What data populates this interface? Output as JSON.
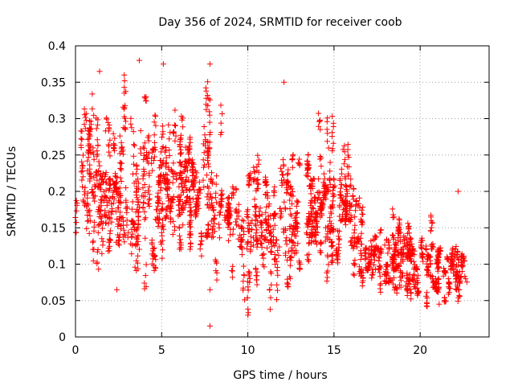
{
  "chart_data": {
    "type": "scatter",
    "title": "Day 356 of 2024, SRMTID for receiver coob",
    "xlabel": "GPS time / hours",
    "ylabel": "SRMTID / TECUs",
    "xlim": [
      0,
      24
    ],
    "ylim": [
      0,
      0.4
    ],
    "x_ticks": [
      0,
      5,
      10,
      15,
      20
    ],
    "x_tick_labels": [
      "0",
      "5",
      "10",
      "15",
      "20"
    ],
    "y_ticks": [
      0,
      0.05,
      0.1,
      0.15,
      0.2,
      0.25,
      0.3,
      0.35,
      0.4
    ],
    "y_tick_labels": [
      "0",
      "0.05",
      "0.1",
      "0.15",
      "0.2",
      "0.25",
      "0.3",
      "0.35",
      "0.4"
    ],
    "grid": true,
    "marker": "+",
    "color": "#ff0000",
    "envelope": [
      {
        "x": 0.0,
        "center": 0.22,
        "spread": 0.06
      },
      {
        "x": 1.0,
        "center": 0.24,
        "spread": 0.06
      },
      {
        "x": 2.0,
        "center": 0.19,
        "spread": 0.06
      },
      {
        "x": 3.0,
        "center": 0.21,
        "spread": 0.07
      },
      {
        "x": 4.0,
        "center": 0.22,
        "spread": 0.07
      },
      {
        "x": 5.0,
        "center": 0.2,
        "spread": 0.06
      },
      {
        "x": 6.0,
        "center": 0.21,
        "spread": 0.06
      },
      {
        "x": 7.0,
        "center": 0.19,
        "spread": 0.05
      },
      {
        "x": 8.0,
        "center": 0.2,
        "spread": 0.06
      },
      {
        "x": 9.0,
        "center": 0.17,
        "spread": 0.05
      },
      {
        "x": 10.0,
        "center": 0.15,
        "spread": 0.05
      },
      {
        "x": 11.0,
        "center": 0.16,
        "spread": 0.05
      },
      {
        "x": 12.0,
        "center": 0.17,
        "spread": 0.05
      },
      {
        "x": 13.0,
        "center": 0.17,
        "spread": 0.05
      },
      {
        "x": 14.0,
        "center": 0.18,
        "spread": 0.05
      },
      {
        "x": 15.0,
        "center": 0.18,
        "spread": 0.05
      },
      {
        "x": 16.0,
        "center": 0.17,
        "spread": 0.04
      },
      {
        "x": 17.0,
        "center": 0.1,
        "spread": 0.03
      },
      {
        "x": 18.0,
        "center": 0.11,
        "spread": 0.03
      },
      {
        "x": 19.0,
        "center": 0.11,
        "spread": 0.03
      },
      {
        "x": 20.0,
        "center": 0.09,
        "spread": 0.025
      },
      {
        "x": 21.0,
        "center": 0.09,
        "spread": 0.025
      },
      {
        "x": 22.0,
        "center": 0.09,
        "spread": 0.025
      },
      {
        "x": 22.8,
        "center": 0.09,
        "spread": 0.025
      }
    ],
    "outliers": [
      {
        "x": 3.7,
        "y": 0.38
      },
      {
        "x": 5.1,
        "y": 0.375
      },
      {
        "x": 7.8,
        "y": 0.375
      },
      {
        "x": 12.1,
        "y": 0.35
      },
      {
        "x": 1.4,
        "y": 0.365
      },
      {
        "x": 7.8,
        "y": 0.015
      },
      {
        "x": 7.8,
        "y": 0.065
      },
      {
        "x": 2.4,
        "y": 0.065
      },
      {
        "x": 21.1,
        "y": 0.045
      },
      {
        "x": 22.2,
        "y": 0.2
      }
    ],
    "points_count": 2600,
    "x_range_data": [
      0,
      22.9
    ]
  }
}
